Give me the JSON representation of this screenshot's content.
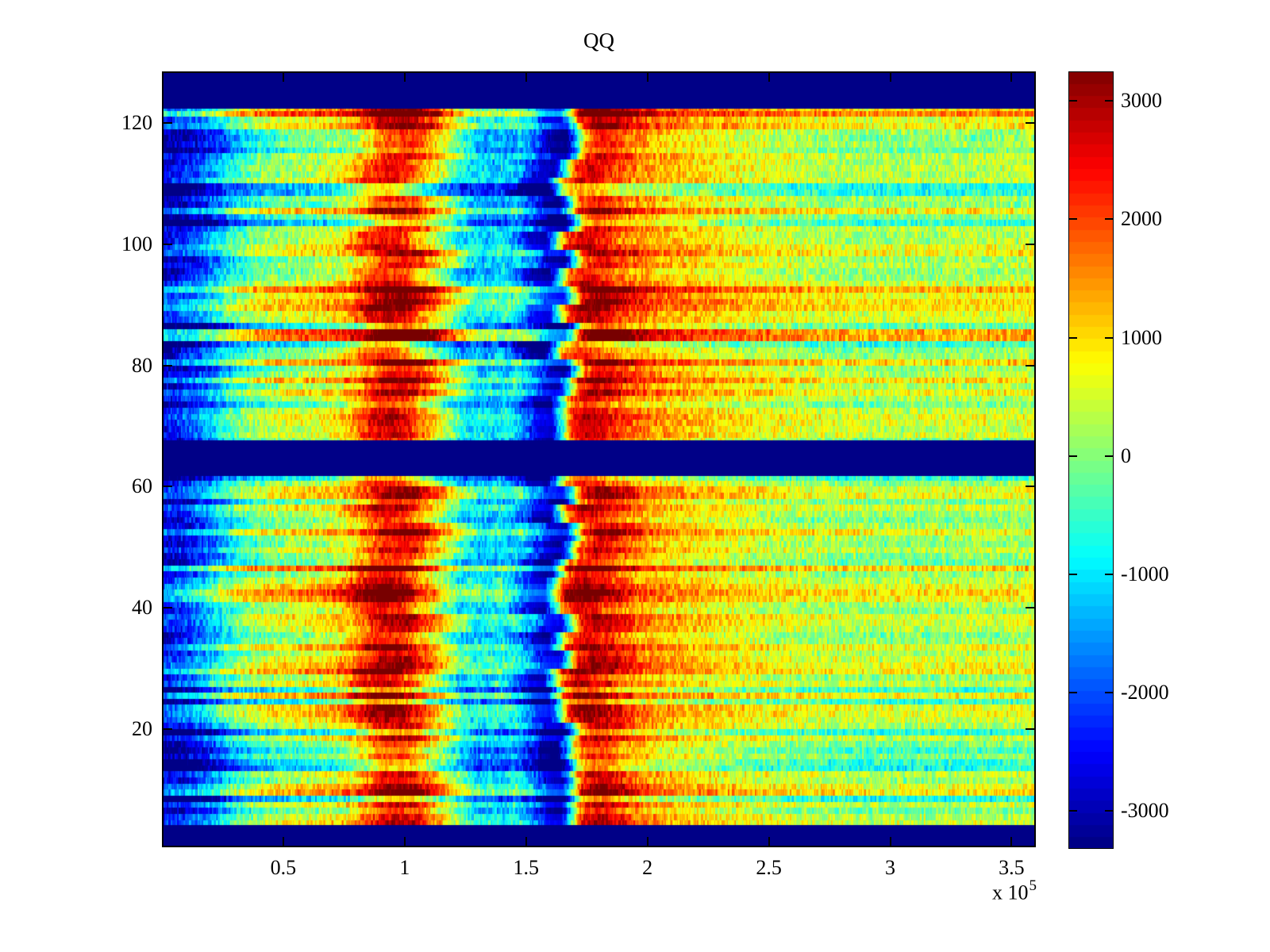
{
  "figure": {
    "background": "#ffffff",
    "axis_color": "#000000",
    "text_color": "#000000"
  },
  "chart_data": {
    "type": "heatmap",
    "title": "QQ",
    "legend": "none",
    "grid": "off",
    "x_axis": {
      "range": [
        0,
        3.6
      ],
      "unit_scale": 100000,
      "tick_values": [
        0.5,
        1,
        1.5,
        2,
        2.5,
        3,
        3.5
      ],
      "tick_labels": [
        "0.5",
        "1",
        "1.5",
        "2",
        "2.5",
        "3",
        "3.5"
      ],
      "exponent_label": {
        "prefix": "x 10",
        "exponent": "5"
      }
    },
    "y_axis": {
      "range": [
        0.5,
        128.5
      ],
      "tick_values": [
        20,
        40,
        60,
        80,
        100,
        120
      ],
      "tick_labels": [
        "20",
        "40",
        "60",
        "80",
        "100",
        "120"
      ]
    },
    "color_axis": {
      "colormap": "jet",
      "levels": 64,
      "range": [
        -3320,
        3250
      ],
      "tick_values": [
        3000,
        2000,
        1000,
        0,
        -1000,
        -2000,
        -3000
      ],
      "tick_labels": [
        "3000",
        "2000",
        "1000",
        "0",
        "-1000",
        "-2000",
        "-3000"
      ]
    },
    "heatmap": {
      "rows": 128,
      "navy_row_bands": [
        [
          0.5,
          4.2
        ],
        [
          61.8,
          67.6
        ],
        [
          122.4,
          128.5
        ]
      ],
      "x_profile": [
        [
          0.0,
          -2600
        ],
        [
          0.06,
          -2500
        ],
        [
          0.12,
          -2100
        ],
        [
          0.2,
          -1500
        ],
        [
          0.28,
          -600
        ],
        [
          0.38,
          -50
        ],
        [
          0.48,
          250
        ],
        [
          0.58,
          350
        ],
        [
          0.68,
          550
        ],
        [
          0.76,
          850
        ],
        [
          0.82,
          1500
        ],
        [
          0.88,
          2350
        ],
        [
          0.95,
          2600
        ],
        [
          1.02,
          2400
        ],
        [
          1.08,
          1500
        ],
        [
          1.15,
          650
        ],
        [
          1.22,
          -350
        ],
        [
          1.28,
          -1150
        ],
        [
          1.33,
          -850
        ],
        [
          1.38,
          -1200
        ],
        [
          1.43,
          -700
        ],
        [
          1.5,
          -1650
        ],
        [
          1.56,
          -2700
        ],
        [
          1.62,
          -2950
        ],
        [
          1.66,
          -800
        ],
        [
          1.7,
          1900
        ],
        [
          1.76,
          2750
        ],
        [
          1.82,
          2550
        ],
        [
          1.88,
          2100
        ],
        [
          1.95,
          1600
        ],
        [
          2.05,
          1250
        ],
        [
          2.2,
          950
        ],
        [
          2.4,
          650
        ],
        [
          2.6,
          420
        ],
        [
          2.9,
          220
        ],
        [
          3.2,
          260
        ],
        [
          3.45,
          320
        ],
        [
          3.6,
          360
        ]
      ],
      "texture": {
        "seed": 7,
        "row_stripe_amp": 680,
        "block_stripe_amp": 520,
        "streak_amp": 520,
        "fine_amp": 260,
        "dark_row_prob": 0.12,
        "dark_row_boost": -1050,
        "bright_row_prob": 0.14,
        "bright_row_boost": 800,
        "band_wobble": 0.05
      }
    }
  }
}
